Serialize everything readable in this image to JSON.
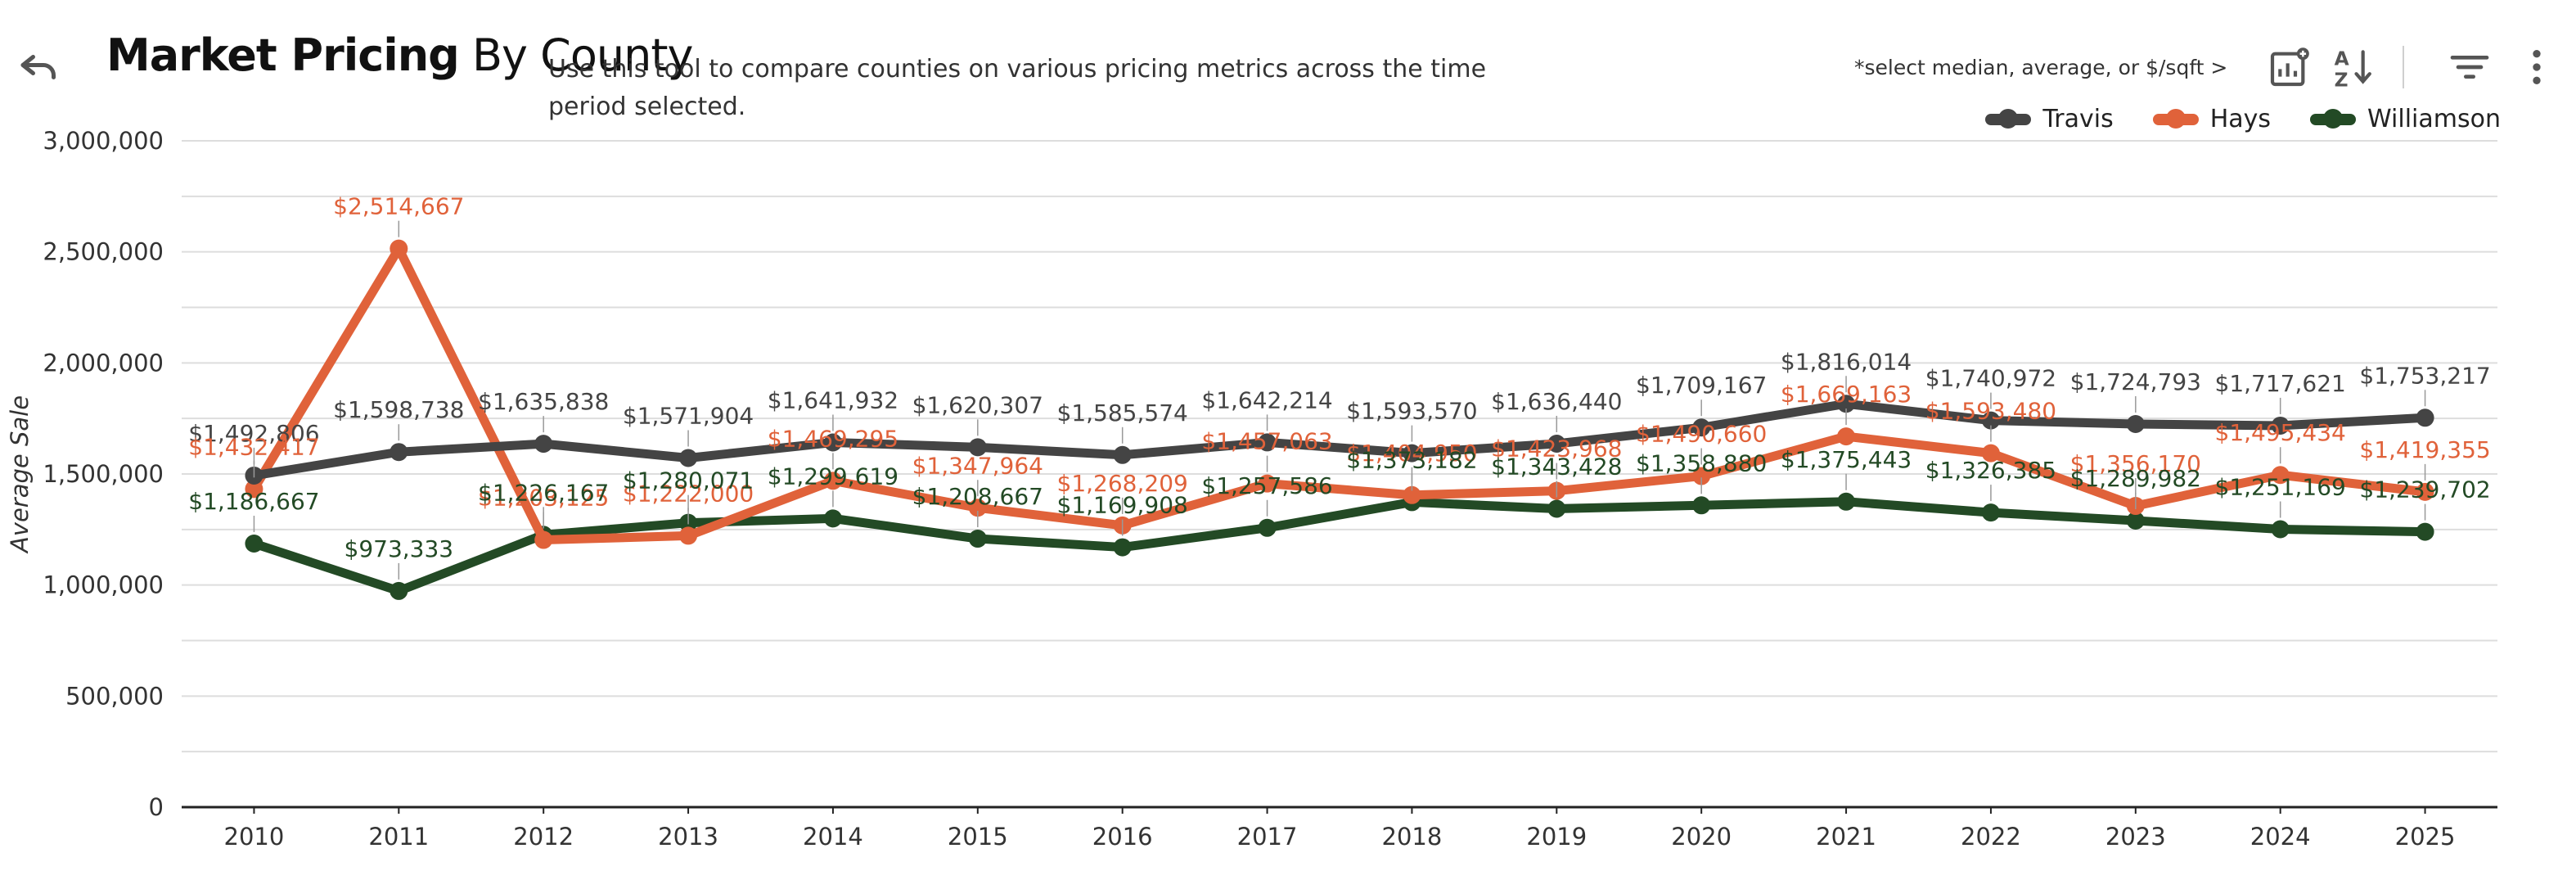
{
  "header": {
    "title_bold": "Market Pricing",
    "title_rest": "By County",
    "description": "Use this tool to compare counties on various pricing metrics across the time period selected.",
    "hint": "*select median, average, or $/sqft  >"
  },
  "toolbar": {
    "icons": [
      "back-arrow-icon",
      "chart-add-icon",
      "sort-az-icon",
      "filter-icon",
      "more-vert-icon"
    ]
  },
  "colors": {
    "Travis": "#444444",
    "Hays": "#E0623A",
    "Williamson": "#234A25",
    "grid": "#dddddd",
    "axis": "#222222"
  },
  "chart_data": {
    "type": "line",
    "title": "Market Pricing By County",
    "xlabel": "",
    "ylabel": "Average Sale",
    "ylim": [
      0,
      3000000
    ],
    "yticks": [
      0,
      500000,
      1000000,
      1500000,
      2000000,
      2500000,
      3000000
    ],
    "ytick_labels": [
      "0",
      "500,000",
      "1,000,000",
      "1,500,000",
      "2,000,000",
      "2,500,000",
      "3,000,000"
    ],
    "x": [
      "2010",
      "2011",
      "2012",
      "2013",
      "2014",
      "2015",
      "2016",
      "2017",
      "2018",
      "2019",
      "2020",
      "2021",
      "2022",
      "2023",
      "2024",
      "2025"
    ],
    "legend_position": "top-right",
    "grid": true,
    "series": [
      {
        "name": "Travis",
        "values": [
          1492806,
          1598738,
          1635838,
          1571904,
          1641932,
          1620307,
          1585574,
          1642214,
          1593570,
          1636440,
          1709167,
          1816014,
          1740972,
          1724793,
          1717621,
          1753217
        ],
        "labels": [
          "$1,492,806",
          "$1,598,738",
          "$1,635,838",
          "$1,571,904",
          "$1,641,932",
          "$1,620,307",
          "$1,585,574",
          "$1,642,214",
          "$1,593,570",
          "$1,636,440",
          "$1,709,167",
          "$1,816,014",
          "$1,740,972",
          "$1,724,793",
          "$1,717,621",
          "$1,753,217"
        ]
      },
      {
        "name": "Hays",
        "values": [
          1432417,
          2514667,
          1203125,
          1222000,
          1469295,
          1347964,
          1268209,
          1457063,
          1404950,
          1423968,
          1490660,
          1669163,
          1593480,
          1356170,
          1495434,
          1419355
        ],
        "labels": [
          "$1,432,417",
          "$2,514,667",
          "$1,203,125",
          "$1,222,000",
          "$1,469,295",
          "$1,347,964",
          "$1,268,209",
          "$1,457,063",
          "$1,404,950",
          "$1,423,968",
          "$1,490,660",
          "$1,669,163",
          "$1,593,480",
          "$1,356,170",
          "$1,495,434",
          "$1,419,355"
        ]
      },
      {
        "name": "Williamson",
        "values": [
          1186667,
          973333,
          1226167,
          1280071,
          1299619,
          1208667,
          1169908,
          1257586,
          1373182,
          1343428,
          1358880,
          1375443,
          1326385,
          1289982,
          1251169,
          1239702
        ],
        "labels": [
          "$1,186,667",
          "$973,333",
          "$1,226,167",
          "$1,280,071",
          "$1,299,619",
          "$1,208,667",
          "$1,169,908",
          "$1,257,586",
          "$1,373,182",
          "$1,343,428",
          "$1,358,880",
          "$1,375,443",
          "$1,326,385",
          "$1,289,982",
          "$1,251,169",
          "$1,239,702"
        ]
      }
    ]
  }
}
